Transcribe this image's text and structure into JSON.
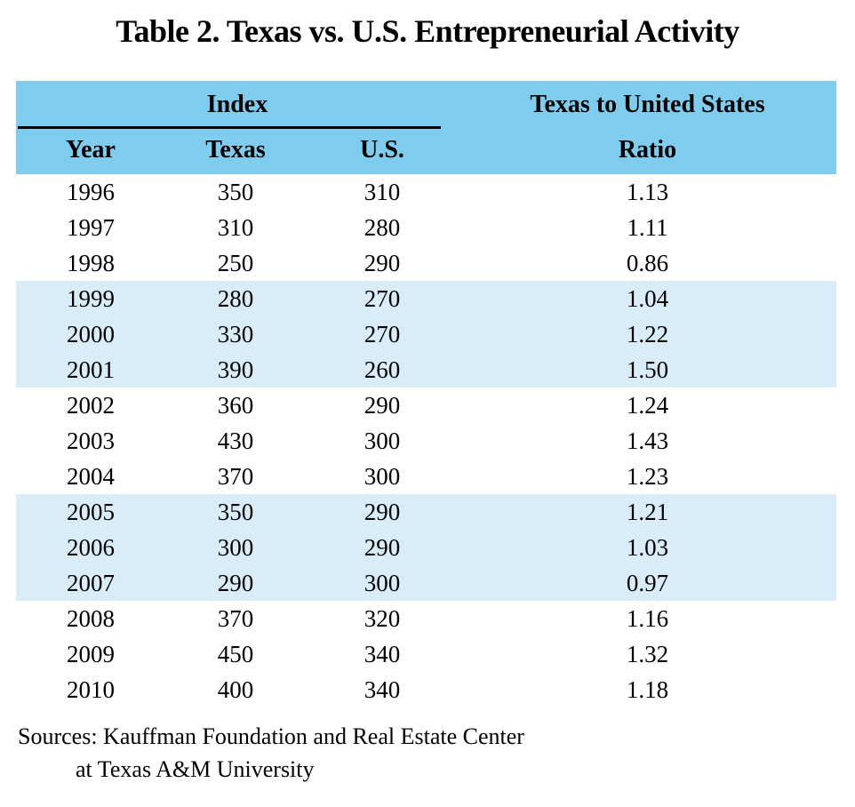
{
  "title": "Table 2. Texas vs. U.S. Entrepreneurial Activity",
  "header": {
    "index_group_label": "Index",
    "year_label": "Year",
    "texas_label": "Texas",
    "us_label": "U.S.",
    "ratio_label_line1": "Texas to United States",
    "ratio_label_line2": "Ratio"
  },
  "sources": {
    "line1": "Sources: Kauffman Foundation and Real Estate Center",
    "line2": "at Texas A&M University"
  },
  "colors": {
    "header_band_bg": "#7ecdee",
    "shaded_row_bg": "#d9edf9",
    "rule": "#000000",
    "text": "#000000"
  },
  "chart_data": {
    "type": "table",
    "title": "Table 2. Texas vs. U.S. Entrepreneurial Activity",
    "column_groups": [
      {
        "label": "Index",
        "spans": [
          "Year",
          "Texas",
          "U.S."
        ]
      },
      {
        "label": "Texas to United States Ratio",
        "spans": [
          "Ratio"
        ]
      }
    ],
    "columns": [
      "Year",
      "Texas",
      "U.S.",
      "Texas to United States Ratio"
    ],
    "rows": [
      {
        "year": "1996",
        "texas": "350",
        "us": "310",
        "ratio": "1.13",
        "shaded": false
      },
      {
        "year": "1997",
        "texas": "310",
        "us": "280",
        "ratio": "1.11",
        "shaded": false
      },
      {
        "year": "1998",
        "texas": "250",
        "us": "290",
        "ratio": "0.86",
        "shaded": false
      },
      {
        "year": "1999",
        "texas": "280",
        "us": "270",
        "ratio": "1.04",
        "shaded": true
      },
      {
        "year": "2000",
        "texas": "330",
        "us": "270",
        "ratio": "1.22",
        "shaded": true
      },
      {
        "year": "2001",
        "texas": "390",
        "us": "260",
        "ratio": "1.50",
        "shaded": true
      },
      {
        "year": "2002",
        "texas": "360",
        "us": "290",
        "ratio": "1.24",
        "shaded": false
      },
      {
        "year": "2003",
        "texas": "430",
        "us": "300",
        "ratio": "1.43",
        "shaded": false
      },
      {
        "year": "2004",
        "texas": "370",
        "us": "300",
        "ratio": "1.23",
        "shaded": false
      },
      {
        "year": "2005",
        "texas": "350",
        "us": "290",
        "ratio": "1.21",
        "shaded": true
      },
      {
        "year": "2006",
        "texas": "300",
        "us": "290",
        "ratio": "1.03",
        "shaded": true
      },
      {
        "year": "2007",
        "texas": "290",
        "us": "300",
        "ratio": "0.97",
        "shaded": true
      },
      {
        "year": "2008",
        "texas": "370",
        "us": "320",
        "ratio": "1.16",
        "shaded": false
      },
      {
        "year": "2009",
        "texas": "450",
        "us": "340",
        "ratio": "1.32",
        "shaded": false
      },
      {
        "year": "2010",
        "texas": "400",
        "us": "340",
        "ratio": "1.18",
        "shaded": false
      }
    ]
  }
}
